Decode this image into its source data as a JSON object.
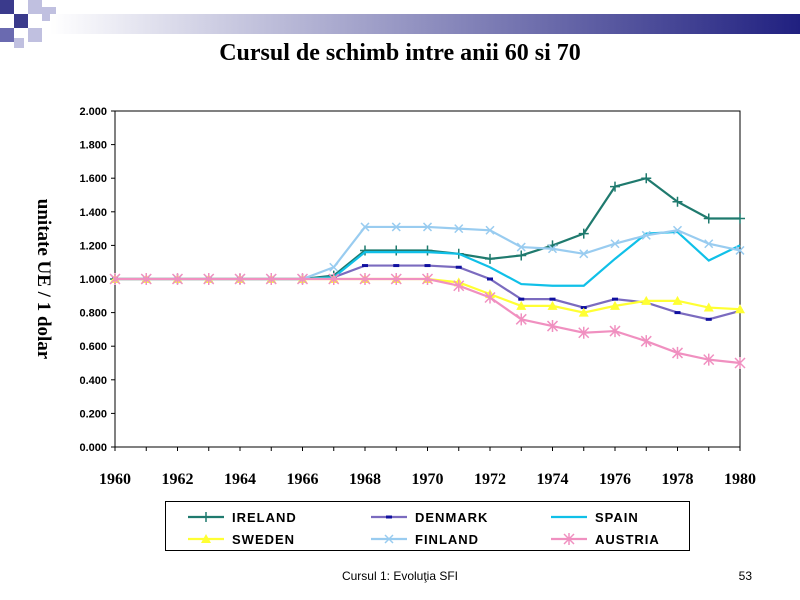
{
  "slide": {
    "title": "Cursul de schimb intre anii 60 si 70",
    "footer": "Cursul 1: Evoluţia SFI",
    "page_number": "53"
  },
  "chart_data": {
    "type": "line",
    "ylabel": "unitate UE / 1 dolar",
    "xlabel": "",
    "x": [
      1960,
      1961,
      1962,
      1963,
      1964,
      1965,
      1966,
      1967,
      1968,
      1969,
      1970,
      1971,
      1972,
      1973,
      1974,
      1975,
      1976,
      1977,
      1978,
      1979,
      1980
    ],
    "xticks": [
      "1960",
      "1962",
      "1964",
      "1966",
      "1968",
      "1970",
      "1972",
      "1974",
      "1976",
      "1978",
      "1980"
    ],
    "yticks": [
      "0.000",
      "0.200",
      "0.400",
      "0.600",
      "0.800",
      "1.000",
      "1.200",
      "1.400",
      "1.600",
      "1.800",
      "2.000"
    ],
    "ylim": [
      0,
      2
    ],
    "xlim": [
      1960,
      1980
    ],
    "grid": false,
    "legend_position": "bottom",
    "series": [
      {
        "name": "IRELAND",
        "color": "#1f7a6e",
        "marker": "plus",
        "values": [
          1,
          1,
          1,
          1,
          1,
          1,
          1,
          1.02,
          1.17,
          1.17,
          1.17,
          1.15,
          1.12,
          1.14,
          1.2,
          1.27,
          1.55,
          1.6,
          1.46,
          1.36,
          1.36
        ]
      },
      {
        "name": "DENMARK",
        "color": "#7b6bbf",
        "marker": "square",
        "values": [
          1,
          1,
          1,
          1,
          1,
          1,
          1,
          1.01,
          1.08,
          1.08,
          1.08,
          1.07,
          1.0,
          0.88,
          0.88,
          0.83,
          0.88,
          0.86,
          0.8,
          0.76,
          0.81
        ]
      },
      {
        "name": "SPAIN",
        "color": "#10c0e8",
        "marker": "none",
        "values": [
          1,
          1,
          1,
          1,
          1,
          1,
          1,
          1.01,
          1.16,
          1.16,
          1.16,
          1.15,
          1.07,
          0.97,
          0.96,
          0.96,
          1.12,
          1.27,
          1.28,
          1.11,
          1.2
        ]
      },
      {
        "name": "SWEDEN",
        "color": "#ffff33",
        "marker": "triangle",
        "values": [
          1,
          1,
          1,
          1,
          1,
          1,
          1,
          1,
          1,
          1,
          1,
          0.98,
          0.91,
          0.84,
          0.84,
          0.8,
          0.84,
          0.87,
          0.87,
          0.83,
          0.82
        ]
      },
      {
        "name": "FINLAND",
        "color": "#99ccf0",
        "marker": "x",
        "values": [
          1,
          1,
          1,
          1,
          1,
          1,
          1,
          1.07,
          1.31,
          1.31,
          1.31,
          1.3,
          1.29,
          1.19,
          1.18,
          1.15,
          1.21,
          1.26,
          1.29,
          1.21,
          1.17
        ]
      },
      {
        "name": "AUSTRIA",
        "color": "#f090c0",
        "marker": "star",
        "values": [
          1,
          1,
          1,
          1,
          1,
          1,
          1,
          1,
          1,
          1,
          1,
          0.96,
          0.89,
          0.76,
          0.72,
          0.68,
          0.69,
          0.63,
          0.56,
          0.52,
          0.5
        ]
      }
    ]
  }
}
